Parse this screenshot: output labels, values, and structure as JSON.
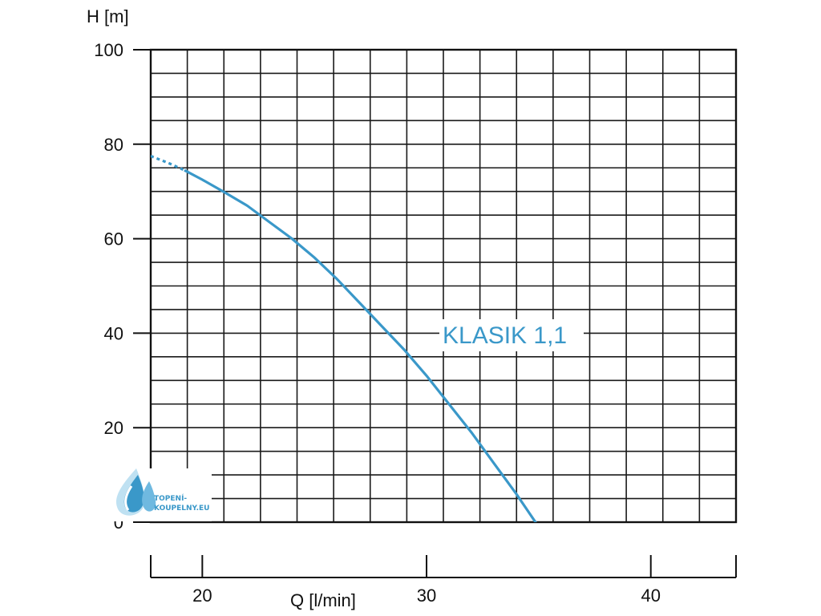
{
  "chart_data": {
    "type": "line",
    "ylabel": "H [m]",
    "xlabel": "Q [l/min]",
    "ylim": [
      0,
      100
    ],
    "xlim": [
      17.7,
      43.8
    ],
    "yticks": [
      "0",
      "20",
      "40",
      "60",
      "80",
      "100"
    ],
    "xticks": [
      "20",
      "30",
      "40"
    ],
    "grid": true,
    "series": [
      {
        "name": "KLASIK 1,1",
        "color": "#3a98c9",
        "x": [
          17.7,
          18.5,
          19.2,
          20.0,
          21.0,
          22.0,
          23.0,
          24.0,
          25.0,
          26.0,
          27.0,
          28.0,
          29.0,
          30.0,
          31.0,
          32.0,
          33.0,
          34.0,
          35.0,
          35.5
        ],
        "y": [
          77.5,
          76.0,
          74.5,
          72.5,
          69.8,
          67.0,
          63.5,
          60.0,
          56.0,
          51.5,
          46.5,
          41.5,
          36.5,
          31.0,
          25.0,
          19.0,
          12.5,
          6.0,
          -1.0,
          -4.0
        ],
        "dashed_until_x": 19.2
      }
    ]
  },
  "logo": {
    "line1": "TOPENÍ-",
    "line2": "KOUPELNY.EU",
    "color": "#3a98c9"
  }
}
